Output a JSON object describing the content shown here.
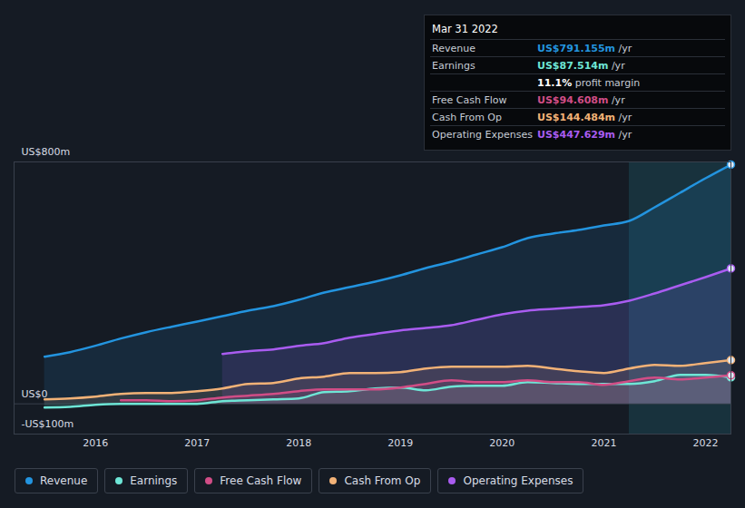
{
  "chart_data": {
    "type": "line",
    "x": [
      2015.5,
      2015.75,
      2016,
      2016.25,
      2016.5,
      2016.75,
      2017,
      2017.25,
      2017.5,
      2017.75,
      2018,
      2018.25,
      2018.5,
      2018.75,
      2019,
      2019.25,
      2019.5,
      2019.75,
      2020,
      2020.25,
      2020.5,
      2020.75,
      2021,
      2021.25,
      2021.5,
      2021.75,
      2022,
      2022.25
    ],
    "xlim": [
      2015.2,
      2022.25
    ],
    "xticks": [
      2016,
      2017,
      2018,
      2019,
      2020,
      2021,
      2022
    ],
    "ylim": [
      -100,
      800
    ],
    "yticks": [
      {
        "value": 800,
        "label": "US$800m"
      },
      {
        "value": 0,
        "label": "US$0"
      },
      {
        "value": -100,
        "label": "-US$100m"
      }
    ],
    "grid": true,
    "legend": "bottom",
    "shaded_range": [
      2021.25,
      2022.25
    ],
    "series": [
      {
        "name": "Revenue",
        "color": "#2394df",
        "values": [
          156,
          171,
          192,
          216,
          237,
          255,
          272,
          290,
          308,
          323,
          344,
          368,
          386,
          404,
          425,
          449,
          470,
          494,
          518,
          548,
          563,
          575,
          590,
          605,
          650,
          698,
          746,
          791.155
        ]
      },
      {
        "name": "Earnings",
        "color": "#6ee6d6",
        "values": [
          -12,
          -10,
          -3,
          0,
          0,
          0,
          0,
          9,
          12,
          15,
          18,
          39,
          42,
          51,
          54,
          45,
          57,
          60,
          60,
          72,
          69,
          66,
          66,
          66,
          75,
          96,
          96,
          87.514
        ]
      },
      {
        "name": "Free Cash Flow",
        "color": "#d14d86",
        "values": [
          null,
          null,
          null,
          12,
          12,
          9,
          12,
          21,
          27,
          33,
          42,
          48,
          48,
          48,
          54,
          66,
          78,
          72,
          72,
          78,
          72,
          72,
          63,
          75,
          87,
          81,
          87,
          94.608
        ]
      },
      {
        "name": "Cash From Op",
        "color": "#f2b277",
        "values": [
          15,
          18,
          24,
          33,
          36,
          36,
          42,
          51,
          66,
          69,
          84,
          90,
          102,
          102,
          105,
          117,
          123,
          123,
          123,
          126,
          117,
          108,
          102,
          117,
          129,
          126,
          135,
          144.484
        ]
      },
      {
        "name": "Operating Expenses",
        "color": "#a95cf0",
        "values": [
          null,
          null,
          null,
          null,
          null,
          null,
          null,
          165,
          174,
          180,
          192,
          201,
          219,
          231,
          243,
          251,
          260,
          278,
          296,
          308,
          314,
          320,
          326,
          341,
          365,
          392,
          419,
          447.629
        ]
      }
    ],
    "tooltip": {
      "date": "Mar 31 2022",
      "rows": [
        {
          "label": "Revenue",
          "value": "US$791.155m",
          "unit": "/yr"
        },
        {
          "label": "Earnings",
          "value": "US$87.514m",
          "unit": "/yr",
          "margin": "11.1%",
          "margin_text": "profit margin"
        },
        {
          "label": "Free Cash Flow",
          "value": "US$94.608m",
          "unit": "/yr"
        },
        {
          "label": "Cash From Op",
          "value": "US$144.484m",
          "unit": "/yr"
        },
        {
          "label": "Operating Expenses",
          "value": "US$447.629m",
          "unit": "/yr"
        }
      ]
    }
  }
}
